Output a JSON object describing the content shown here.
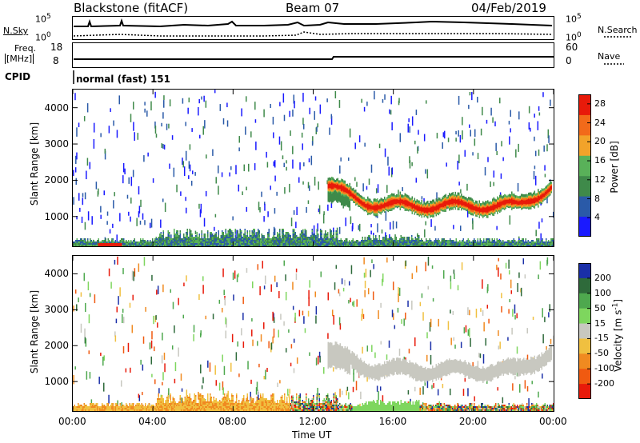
{
  "header": {
    "station": "Blackstone (fitACF)",
    "beam": "Beam 07",
    "date": "04/Feb/2019"
  },
  "noise_panel": {
    "left_label": "N.Sky",
    "right_label": "N.Search",
    "left_ticks": [
      "10^5",
      "10^0"
    ],
    "right_ticks": [
      "10^5",
      "10^0"
    ]
  },
  "freq_panel": {
    "left_label_line1": "Freq.",
    "left_label_line2": "[MHz]",
    "right_label": "Nave",
    "left_ticks": [
      "18",
      "8"
    ],
    "right_ticks": [
      "60",
      "0"
    ]
  },
  "cpid": {
    "label": "CPID",
    "value": "normal (fast) 151"
  },
  "chart_data": [
    {
      "type": "heatmap",
      "title": "Power",
      "xlabel": "",
      "ylabel": "Slant Range [km]",
      "x_ticks": [
        "00:00",
        "04:00",
        "08:00",
        "12:00",
        "16:00",
        "20:00",
        "00:00"
      ],
      "y_ticks": [
        1000,
        2000,
        3000,
        4000
      ],
      "ylim": [
        180,
        4500
      ],
      "colorbar_label": "Power [dB]",
      "colorbar_ticks": [
        4,
        8,
        12,
        16,
        20,
        24,
        28
      ],
      "colorbar_range": [
        0,
        30
      ],
      "colors": [
        "#1a1aff",
        "#2a5aa8",
        "#3f8a4a",
        "#59b159",
        "#f2a32a",
        "#f26a1a",
        "#e81a0a"
      ]
    },
    {
      "type": "heatmap",
      "title": "Velocity",
      "xlabel": "Time UT",
      "ylabel": "Slant Range [km]",
      "x_ticks": [
        "00:00",
        "04:00",
        "08:00",
        "12:00",
        "16:00",
        "20:00",
        "00:00"
      ],
      "y_ticks": [
        1000,
        2000,
        3000,
        4000
      ],
      "ylim": [
        180,
        4500
      ],
      "colorbar_label": "Velocity [m s^-1]",
      "colorbar_ticks": [
        200,
        100,
        50,
        15,
        -15,
        -50,
        -100,
        -200
      ],
      "colors": [
        "#1a2fa8",
        "#2e6a3a",
        "#4ea84e",
        "#7ed65e",
        "#c8c8c0",
        "#f0c040",
        "#f08a20",
        "#f05a10",
        "#e81a0a"
      ]
    }
  ]
}
